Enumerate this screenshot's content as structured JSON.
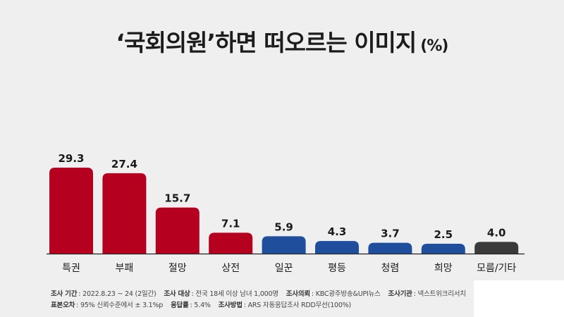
{
  "title": {
    "text": "‘국회의원’하면 떠오르는 이미지",
    "unit": "(%)"
  },
  "chart_data": {
    "type": "bar",
    "categories": [
      "특권",
      "부패",
      "절망",
      "상전",
      "일꾼",
      "평등",
      "청렴",
      "희망",
      "모름/기타"
    ],
    "values": [
      29.3,
      27.4,
      15.7,
      7.1,
      5.9,
      4.3,
      3.7,
      2.5,
      4.0
    ],
    "value_labels": [
      "29.3",
      "27.4",
      "15.7",
      "7.1",
      "5.9",
      "4.3",
      "3.7",
      "2.5",
      "4.0"
    ],
    "colors": [
      "#b5001f",
      "#b5001f",
      "#b5001f",
      "#b5001f",
      "#1f4f9c",
      "#1f4f9c",
      "#1f4f9c",
      "#1f4f9c",
      "#3a3a3a"
    ],
    "ylim": [
      0,
      29.3
    ],
    "grid": false,
    "legend": "none"
  },
  "footer": {
    "line1": [
      {
        "label": "조사 기간",
        "value": ": 2022.8.23 ~ 24 (2일간)"
      },
      {
        "label": "조사 대상",
        "value": ": 전국 18세 이상 남녀 1,000명"
      },
      {
        "label": "조사의뢰",
        "value": ": KBC광주방송&UPI뉴스"
      },
      {
        "label": "조사기관",
        "value": ": 넥스트위크리서치"
      }
    ],
    "line2": [
      {
        "label": "표본오차",
        "value": ": 95% 신뢰수준에서 ± 3.1%p"
      },
      {
        "label": "응답률",
        "value": ": 5.4%"
      },
      {
        "label": "조사방법",
        "value": ": ARS 자동응답조사 RDD무선(100%)"
      }
    ]
  }
}
